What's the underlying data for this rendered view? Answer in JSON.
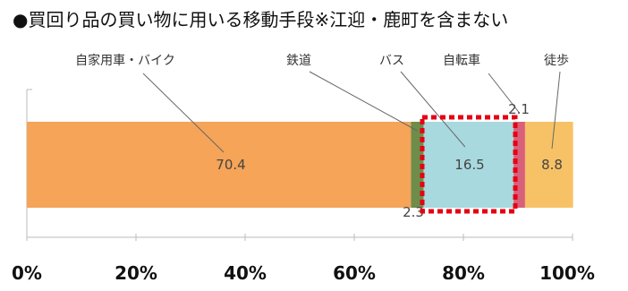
{
  "chart_data": {
    "type": "bar",
    "orientation": "horizontal",
    "stacked": true,
    "title": "●買回り品の買い物に用いる移動手段※江迎・鹿町を含まない",
    "categories": [
      ""
    ],
    "series": [
      {
        "name": "自家用車・バイク",
        "values": [
          70.4
        ],
        "color": "#f5a458",
        "label": "70.4"
      },
      {
        "name": "鉄道",
        "values": [
          2.3
        ],
        "color": "#6e8d4a",
        "label": "2.3"
      },
      {
        "name": "バス",
        "values": [
          16.5
        ],
        "color": "#a8d9de",
        "label": "16.5"
      },
      {
        "name": "自転車",
        "values": [
          2.1
        ],
        "color": "#d9607a",
        "label": "2.1"
      },
      {
        "name": "徒歩",
        "values": [
          8.8
        ],
        "color": "#f7c265",
        "label": "8.8"
      }
    ],
    "xlim": [
      0,
      100
    ],
    "x_ticks": [
      "0%",
      "20%",
      "40%",
      "60%",
      "80%",
      "100%"
    ],
    "highlight": {
      "target": "バス",
      "style": "red dotted box"
    },
    "legend": "callout-labels-top"
  }
}
